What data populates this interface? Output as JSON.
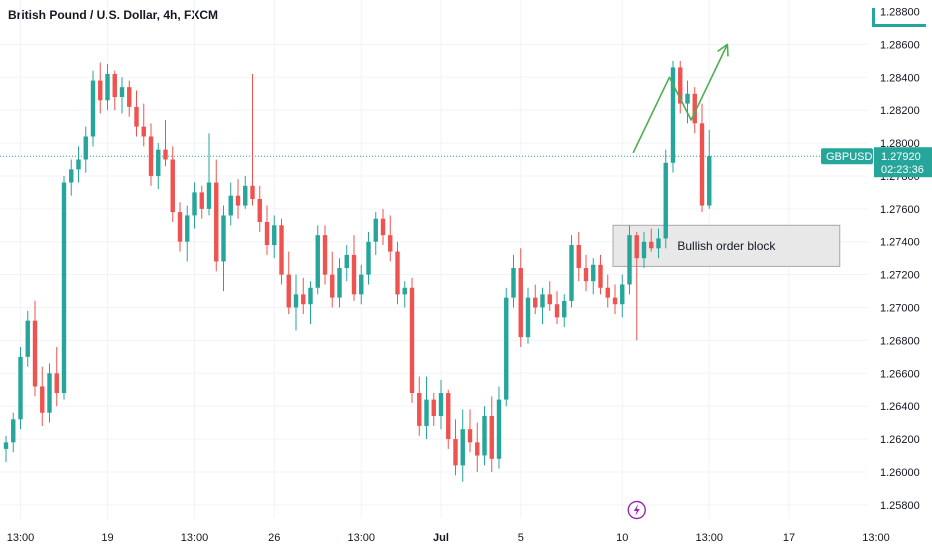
{
  "header": {
    "title": "British Pound / U.S. Dollar, 4h, FXCM"
  },
  "colors": {
    "up": "#26a69a",
    "down": "#ef5350",
    "projection": "#4caf50",
    "price_line": "#26a69a",
    "event_icon": "#9c27b0"
  },
  "chart_data": {
    "type": "candlestick",
    "symbol": "GBPUSD",
    "last_price": "1.27920",
    "countdown": "02:23:36",
    "top_tick_partial": "1.28800",
    "ylim": [
      1.2572,
      1.2887
    ],
    "y_ticks": [
      "1.28600",
      "1.28400",
      "1.28200",
      "1.28000",
      "1.27800",
      "1.27600",
      "1.27400",
      "1.27200",
      "1.27000",
      "1.26800",
      "1.26600",
      "1.26400",
      "1.26200",
      "1.26000",
      "1.25800"
    ],
    "x_labels": [
      {
        "text": "13:00",
        "bar": 2,
        "bold": false
      },
      {
        "text": "19",
        "bar": 14,
        "bold": false
      },
      {
        "text": "13:00",
        "bar": 26,
        "bold": false
      },
      {
        "text": "26",
        "bar": 37,
        "bold": false
      },
      {
        "text": "13:00",
        "bar": 49,
        "bold": false
      },
      {
        "text": "Jul",
        "bar": 60,
        "bold": true
      },
      {
        "text": "5",
        "bar": 71,
        "bold": false
      },
      {
        "text": "10",
        "bar": 85,
        "bold": false
      },
      {
        "text": "13:00",
        "bar": 97,
        "bold": false
      },
      {
        "text": "17",
        "bar": 108,
        "bold": false
      },
      {
        "text": "13:00",
        "bar": 120,
        "bold": false
      }
    ],
    "candles": [
      [
        1.2614,
        1.2622,
        1.2606,
        1.2618
      ],
      [
        1.2618,
        1.2636,
        1.2612,
        1.2632
      ],
      [
        1.2632,
        1.2676,
        1.2626,
        1.267
      ],
      [
        1.267,
        1.2698,
        1.2664,
        1.2692
      ],
      [
        1.2692,
        1.2704,
        1.2646,
        1.2652
      ],
      [
        1.2652,
        1.2664,
        1.2628,
        1.2636
      ],
      [
        1.2636,
        1.2666,
        1.263,
        1.266
      ],
      [
        1.266,
        1.2676,
        1.264,
        1.2648
      ],
      [
        1.2648,
        1.278,
        1.2644,
        1.2776
      ],
      [
        1.2776,
        1.279,
        1.2768,
        1.2784
      ],
      [
        1.2784,
        1.2798,
        1.2776,
        1.279
      ],
      [
        1.279,
        1.281,
        1.2782,
        1.2804
      ],
      [
        1.2804,
        1.2844,
        1.2798,
        1.2838
      ],
      [
        1.2838,
        1.2849,
        1.2818,
        1.2826
      ],
      [
        1.2826,
        1.2848,
        1.282,
        1.2842
      ],
      [
        1.2842,
        1.2844,
        1.282,
        1.2828
      ],
      [
        1.2828,
        1.284,
        1.2818,
        1.2834
      ],
      [
        1.2834,
        1.2838,
        1.2816,
        1.2822
      ],
      [
        1.2822,
        1.2832,
        1.2804,
        1.281
      ],
      [
        1.281,
        1.2824,
        1.2798,
        1.2804
      ],
      [
        1.2804,
        1.2812,
        1.2774,
        1.278
      ],
      [
        1.278,
        1.28,
        1.2772,
        1.2796
      ],
      [
        1.2796,
        1.2814,
        1.2786,
        1.279
      ],
      [
        1.279,
        1.2798,
        1.2752,
        1.2758
      ],
      [
        1.2758,
        1.2764,
        1.2734,
        1.274
      ],
      [
        1.274,
        1.2762,
        1.2728,
        1.2756
      ],
      [
        1.2756,
        1.2776,
        1.2748,
        1.277
      ],
      [
        1.277,
        1.2774,
        1.2754,
        1.276
      ],
      [
        1.276,
        1.2806,
        1.2756,
        1.2776
      ],
      [
        1.2776,
        1.279,
        1.2722,
        1.2728
      ],
      [
        1.2728,
        1.2762,
        1.271,
        1.2756
      ],
      [
        1.2756,
        1.2776,
        1.275,
        1.2768
      ],
      [
        1.2768,
        1.2778,
        1.2754,
        1.2762
      ],
      [
        1.2762,
        1.278,
        1.276,
        1.2774
      ],
      [
        1.2774,
        1.2842,
        1.2762,
        1.2766
      ],
      [
        1.2766,
        1.2774,
        1.2746,
        1.2752
      ],
      [
        1.2752,
        1.2762,
        1.2732,
        1.2738
      ],
      [
        1.2738,
        1.2756,
        1.273,
        1.275
      ],
      [
        1.275,
        1.2754,
        1.2714,
        1.272
      ],
      [
        1.272,
        1.2734,
        1.2696,
        1.27
      ],
      [
        1.27,
        1.272,
        1.2686,
        1.2708
      ],
      [
        1.2708,
        1.2718,
        1.2696,
        1.2702
      ],
      [
        1.2702,
        1.2716,
        1.269,
        1.2712
      ],
      [
        1.2712,
        1.275,
        1.2708,
        1.2744
      ],
      [
        1.2744,
        1.275,
        1.2714,
        1.272
      ],
      [
        1.272,
        1.2734,
        1.27,
        1.2706
      ],
      [
        1.2706,
        1.273,
        1.27,
        1.2724
      ],
      [
        1.2724,
        1.2738,
        1.2716,
        1.2732
      ],
      [
        1.2732,
        1.2744,
        1.2704,
        1.2708
      ],
      [
        1.2708,
        1.2726,
        1.2702,
        1.272
      ],
      [
        1.272,
        1.2746,
        1.2714,
        1.274
      ],
      [
        1.274,
        1.2758,
        1.2732,
        1.2754
      ],
      [
        1.2754,
        1.276,
        1.2738,
        1.2744
      ],
      [
        1.2744,
        1.2756,
        1.2728,
        1.2734
      ],
      [
        1.2734,
        1.274,
        1.2702,
        1.2708
      ],
      [
        1.2708,
        1.2716,
        1.27,
        1.2712
      ],
      [
        1.2712,
        1.2718,
        1.2642,
        1.2648
      ],
      [
        1.2648,
        1.2658,
        1.2622,
        1.2628
      ],
      [
        1.2628,
        1.2658,
        1.262,
        1.2644
      ],
      [
        1.2644,
        1.2648,
        1.2628,
        1.2634
      ],
      [
        1.2634,
        1.2656,
        1.2626,
        1.2648
      ],
      [
        1.2648,
        1.265,
        1.2614,
        1.262
      ],
      [
        1.262,
        1.2632,
        1.2598,
        1.2604
      ],
      [
        1.2604,
        1.2638,
        1.2594,
        1.2626
      ],
      [
        1.2626,
        1.2638,
        1.2612,
        1.2618
      ],
      [
        1.2618,
        1.263,
        1.26,
        1.261
      ],
      [
        1.261,
        1.264,
        1.2604,
        1.2634
      ],
      [
        1.2634,
        1.2646,
        1.26,
        1.2608
      ],
      [
        1.2608,
        1.2652,
        1.2602,
        1.2644
      ],
      [
        1.2644,
        1.2712,
        1.264,
        1.2706
      ],
      [
        1.2706,
        1.2732,
        1.27,
        1.2724
      ],
      [
        1.2724,
        1.2736,
        1.2676,
        1.2682
      ],
      [
        1.2682,
        1.2712,
        1.2678,
        1.2706
      ],
      [
        1.2706,
        1.2714,
        1.2696,
        1.27
      ],
      [
        1.27,
        1.2712,
        1.269,
        1.2708
      ],
      [
        1.2708,
        1.2716,
        1.2698,
        1.2702
      ],
      [
        1.2702,
        1.271,
        1.269,
        1.2694
      ],
      [
        1.2694,
        1.2708,
        1.2688,
        1.2704
      ],
      [
        1.2704,
        1.2744,
        1.27,
        1.2738
      ],
      [
        1.2738,
        1.2746,
        1.2716,
        1.2724
      ],
      [
        1.2724,
        1.2732,
        1.271,
        1.2716
      ],
      [
        1.2716,
        1.273,
        1.2708,
        1.2726
      ],
      [
        1.2726,
        1.2732,
        1.2708,
        1.2712
      ],
      [
        1.2712,
        1.272,
        1.27,
        1.2706
      ],
      [
        1.2706,
        1.2714,
        1.2696,
        1.2702
      ],
      [
        1.2702,
        1.272,
        1.2694,
        1.2714
      ],
      [
        1.2714,
        1.275,
        1.2708,
        1.2744
      ],
      [
        1.2744,
        1.2746,
        1.268,
        1.273
      ],
      [
        1.273,
        1.2746,
        1.2724,
        1.274
      ],
      [
        1.274,
        1.2748,
        1.2734,
        1.2736
      ],
      [
        1.2736,
        1.2748,
        1.273,
        1.2742
      ],
      [
        1.2742,
        1.2796,
        1.2736,
        1.2788
      ],
      [
        1.2788,
        1.285,
        1.2782,
        1.2846
      ],
      [
        1.2846,
        1.285,
        1.2818,
        1.2824
      ],
      [
        1.2824,
        1.2838,
        1.2812,
        1.283
      ],
      [
        1.283,
        1.2834,
        1.2806,
        1.2812
      ],
      [
        1.2812,
        1.2824,
        1.2758,
        1.2762
      ],
      [
        1.2762,
        1.2808,
        1.276,
        1.2792
      ]
    ],
    "projection_path": [
      [
        1.2794,
        86.5
      ],
      [
        1.284,
        91.5
      ],
      [
        1.2814,
        94.5
      ],
      [
        1.286,
        99.5
      ]
    ],
    "order_block": {
      "label": "Bullish order block",
      "y_top": 1.275,
      "y_bottom": 1.2725,
      "start_bar": 84,
      "end_bar": 115
    },
    "event_icon_bar": 87
  }
}
